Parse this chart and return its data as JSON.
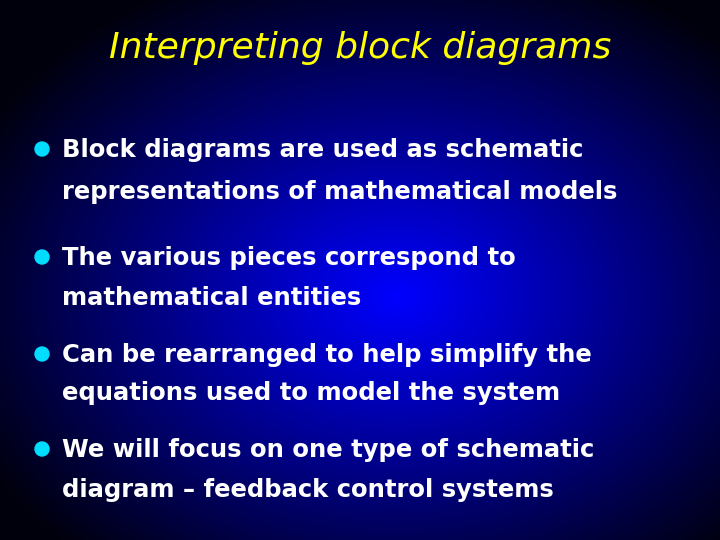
{
  "title": "Interpreting block diagrams",
  "title_color": "#FFFF00",
  "title_fontsize": 26,
  "bullet_color": "#00DDFF",
  "text_color": "#FFFFFF",
  "text_fontsize": 17.5,
  "bullets": [
    {
      "line1": "Block diagrams are used as schematic",
      "line2": "representations of mathematical models"
    },
    {
      "line1": "The various pieces correspond to",
      "line2": "mathematical entities"
    },
    {
      "line1": "Can be rearranged to help simplify the",
      "line2": "equations used to model the system"
    },
    {
      "line1": "We will focus on one type of schematic",
      "line2": "diagram – feedback control systems"
    }
  ],
  "fig_width": 7.2,
  "fig_height": 5.4,
  "dpi": 100
}
